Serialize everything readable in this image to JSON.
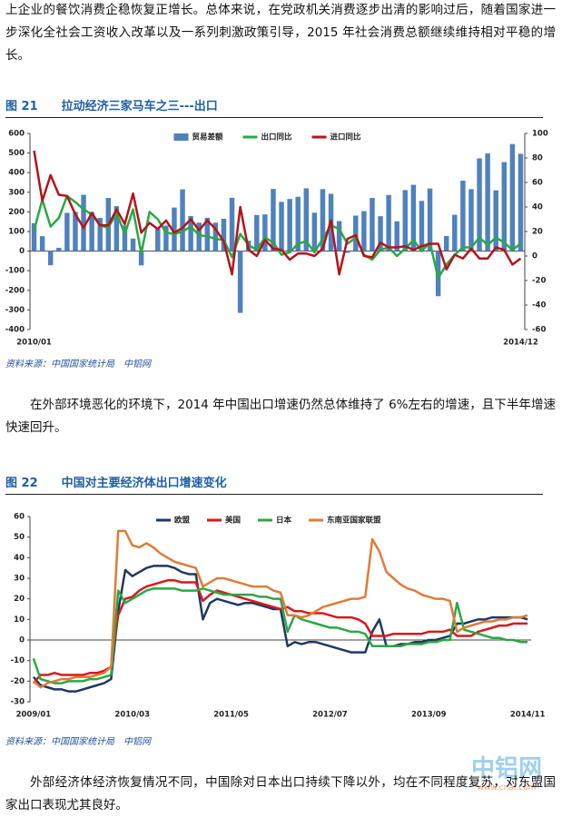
{
  "paragraphs": [
    "上企业的餐饮消费企稳恢复正增长。总体来说，在党政机关消费逐步出清的影响过后，随着国家进一步深化全社会工资收入改革以及一系列刺激政策引导，2015 年社会消费总额继续维持相对平稳的增长。",
    "在外部环境恶化的环境下，2014 年中国出口增速仍然总体维持了 6%左右的增速，且下半年增速快速回升。",
    "外部经济体经济恢复情况不同，中国除对日本出口持续下降以外，均在不同程度复苏，对东盟国家出口表现尤其良好。"
  ],
  "figures": [
    {
      "label": "图 21",
      "title": "拉动经济三家马车之三---出口",
      "source": "资料来源：中国国家统计局　中铝网"
    },
    {
      "label": "图 22",
      "title": "中国对主要经济体出口增速变化",
      "source": "资料来源：中国国家统计局　中铝网"
    }
  ],
  "logo": {
    "text": "中铝网",
    "url": "www.cnal.com"
  },
  "chart_data": [
    {
      "type": "bar",
      "legend": "top",
      "categories": [
        "2010/01",
        null,
        null,
        null,
        null,
        null,
        null,
        null,
        null,
        null,
        null,
        null,
        null,
        null,
        null,
        null,
        null,
        null,
        null,
        null,
        null,
        null,
        null,
        null,
        null,
        null,
        null,
        null,
        null,
        null,
        null,
        null,
        null,
        null,
        null,
        null,
        null,
        null,
        null,
        null,
        null,
        null,
        null,
        null,
        null,
        null,
        null,
        null,
        null,
        null,
        null,
        null,
        null,
        null,
        null,
        null,
        null,
        null,
        null,
        "2014/12"
      ],
      "series": [
        {
          "name": "贸易差额",
          "type": "bar",
          "color": "#4f81bd",
          "values": [
            142,
            76,
            -72,
            17,
            195,
            200,
            287,
            200,
            169,
            271,
            229,
            131,
            64,
            -73,
            1,
            114,
            130,
            222,
            315,
            179,
            145,
            170,
            145,
            165,
            272,
            -315,
            53,
            184,
            187,
            317,
            251,
            266,
            277,
            320,
            196,
            316,
            292,
            153,
            -9,
            181,
            204,
            271,
            178,
            286,
            152,
            311,
            338,
            256,
            319,
            -230,
            77,
            185,
            359,
            316,
            473,
            498,
            310,
            454,
            546,
            496
          ]
        },
        {
          "name": "出口同比",
          "type": "line",
          "axis": "y2",
          "color": "#2aa845",
          "values": [
            21,
            46,
            24,
            31,
            49,
            44,
            38,
            34,
            25,
            23,
            35,
            18,
            38,
            2,
            36,
            30,
            19,
            18,
            20,
            24,
            17,
            16,
            14,
            13,
            -1,
            18,
            9,
            5,
            15,
            11,
            1,
            3,
            10,
            12,
            3,
            14,
            25,
            22,
            10,
            15,
            1,
            -3,
            5,
            7,
            0,
            6,
            13,
            4,
            11,
            -18,
            -7,
            1,
            7,
            7,
            15,
            9,
            15,
            11,
            5,
            10
          ]
        },
        {
          "name": "进口同比",
          "type": "line",
          "axis": "y2",
          "color": "#b3141c",
          "values": [
            86,
            45,
            66,
            50,
            49,
            34,
            23,
            35,
            25,
            25,
            38,
            26,
            51,
            19,
            27,
            22,
            29,
            19,
            23,
            30,
            21,
            29,
            22,
            12,
            -15,
            40,
            5,
            0,
            13,
            6,
            5,
            -3,
            2,
            2,
            0,
            6,
            29,
            -15,
            14,
            17,
            0,
            -1,
            11,
            7,
            7,
            8,
            5,
            8,
            10,
            10,
            -11,
            1,
            -2,
            6,
            -2,
            -2,
            7,
            5,
            -7,
            -2
          ]
        }
      ],
      "ylim": [
        -400,
        600
      ],
      "yticks": [
        -400,
        -300,
        -200,
        -100,
        0,
        100,
        200,
        300,
        400,
        500,
        600
      ],
      "y2lim": [
        -60,
        100
      ],
      "y2ticks": [
        -60,
        -40,
        -20,
        0,
        20,
        40,
        60,
        80,
        100
      ]
    },
    {
      "type": "line",
      "legend": "top",
      "categories": [
        "2009/01",
        null,
        null,
        null,
        null,
        null,
        null,
        null,
        null,
        null,
        null,
        null,
        null,
        null,
        "2010/03",
        null,
        null,
        null,
        null,
        null,
        null,
        null,
        null,
        null,
        null,
        null,
        null,
        null,
        "2011/05",
        null,
        null,
        null,
        null,
        null,
        null,
        null,
        null,
        null,
        null,
        null,
        null,
        null,
        "2012/07",
        null,
        null,
        null,
        null,
        null,
        null,
        null,
        null,
        null,
        null,
        null,
        null,
        null,
        "2013/09",
        null,
        null,
        null,
        null,
        null,
        null,
        null,
        null,
        null,
        null,
        null,
        null,
        null,
        "2014/11"
      ],
      "series": [
        {
          "name": "欧盟",
          "color": "#1f3864",
          "values": [
            -18,
            -22,
            -23,
            -24,
            -24,
            -25,
            -25,
            -24,
            -23,
            -22,
            -21,
            -19,
            14,
            34,
            31,
            33,
            35,
            36,
            36,
            36,
            35,
            33,
            32,
            32,
            10,
            18,
            20,
            19,
            18,
            17,
            18,
            18,
            17,
            16,
            15,
            15,
            -3,
            -1,
            -2,
            -1,
            -1,
            -2,
            -3,
            -4,
            -5,
            -6,
            -6,
            -6,
            4,
            10,
            -3,
            -3,
            -2,
            -2,
            -1,
            -1,
            0,
            0,
            1,
            2,
            8,
            8,
            9,
            10,
            10,
            11,
            11,
            11,
            11,
            11,
            10
          ]
        },
        {
          "name": "美国",
          "color": "#d7191c",
          "values": [
            -21,
            -17,
            -17,
            -16,
            -17,
            -17,
            -17,
            -17,
            -16,
            -16,
            -15,
            -13,
            12,
            20,
            21,
            24,
            26,
            27,
            28,
            29,
            29,
            28,
            28,
            28,
            19,
            22,
            24,
            23,
            22,
            21,
            20,
            19,
            18,
            17,
            16,
            15,
            16,
            14,
            14,
            13,
            13,
            13,
            12,
            11,
            11,
            11,
            10,
            8,
            2,
            2,
            2,
            3,
            3,
            3,
            3,
            3,
            4,
            4,
            4,
            5,
            2,
            2,
            2,
            4,
            5,
            6,
            7,
            7,
            8,
            8,
            8
          ]
        },
        {
          "name": "日本",
          "color": "#2aa845",
          "values": [
            -9,
            -19,
            -20,
            -21,
            -21,
            -20,
            -20,
            -20,
            -19,
            -19,
            -18,
            -17,
            24,
            18,
            20,
            22,
            24,
            25,
            25,
            25,
            25,
            24,
            24,
            24,
            25,
            24,
            23,
            22,
            22,
            22,
            22,
            22,
            21,
            21,
            20,
            20,
            4,
            12,
            10,
            9,
            8,
            7,
            6,
            6,
            5,
            4,
            4,
            3,
            -3,
            -3,
            -3,
            -3,
            -3,
            -2,
            -2,
            -2,
            -1,
            -1,
            0,
            0,
            18,
            5,
            4,
            3,
            2,
            1,
            1,
            0,
            0,
            -1,
            -1
          ]
        },
        {
          "name": "东南亚国家联盟",
          "color": "#e07b39",
          "values": [
            -20,
            -23,
            -21,
            -20,
            -19,
            -19,
            -18,
            -18,
            -18,
            -17,
            -16,
            -13,
            53,
            53,
            46,
            45,
            47,
            45,
            42,
            40,
            38,
            37,
            36,
            35,
            26,
            28,
            30,
            30,
            29,
            28,
            27,
            26,
            26,
            26,
            24,
            23,
            12,
            12,
            11,
            12,
            14,
            16,
            17,
            18,
            19,
            20,
            20,
            21,
            49,
            43,
            33,
            30,
            27,
            25,
            24,
            22,
            21,
            20,
            20,
            19,
            4,
            6,
            7,
            8,
            9,
            9,
            10,
            10,
            11,
            11,
            12
          ]
        }
      ],
      "ylim": [
        -30,
        60
      ],
      "yticks": [
        -30,
        -20,
        -10,
        0,
        10,
        20,
        30,
        40,
        50,
        60
      ]
    }
  ]
}
